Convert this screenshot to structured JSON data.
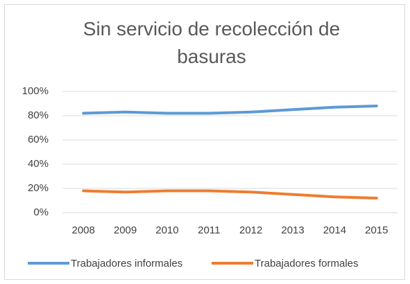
{
  "chart_data": {
    "type": "line",
    "title": "Sin servicio de recolección de basuras",
    "categories": [
      "2008",
      "2009",
      "2010",
      "2011",
      "2012",
      "2013",
      "2014",
      "2015"
    ],
    "series": [
      {
        "name": "Trabajadores informales",
        "color": "#5b9bd5",
        "values": [
          82,
          83,
          82,
          82,
          83,
          85,
          87,
          88
        ]
      },
      {
        "name": "Trabajadores formales",
        "color": "#ed7d31",
        "values": [
          18,
          17,
          18,
          18,
          17,
          15,
          13,
          12
        ]
      }
    ],
    "ylim": [
      0,
      100
    ],
    "yticks": [
      {
        "value": 0,
        "label": "0%"
      },
      {
        "value": 20,
        "label": "20%"
      },
      {
        "value": 40,
        "label": "40%"
      },
      {
        "value": 60,
        "label": "60%"
      },
      {
        "value": 80,
        "label": "80%"
      },
      {
        "value": 100,
        "label": "100%"
      }
    ],
    "grid": true,
    "legend": "bottom"
  }
}
